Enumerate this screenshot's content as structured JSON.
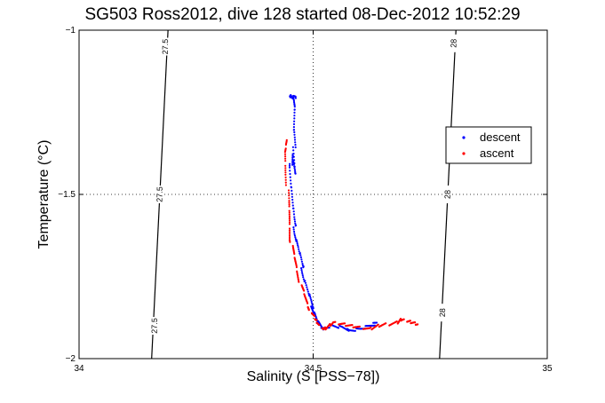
{
  "chart_data": {
    "type": "scatter",
    "title": "SG503 Ross2012, dive 128 started 08-Dec-2012 10:52:29",
    "xlabel": "Salinity (S [PSS−78])",
    "ylabel": "Temperature (°C)",
    "xlim": [
      34,
      35
    ],
    "ylim": [
      -2,
      -1
    ],
    "xticks": [
      34,
      34.5,
      35
    ],
    "yticks": [
      -2,
      -1.5,
      -1
    ],
    "xtick_labels": [
      "34",
      "34.5",
      "35"
    ],
    "ytick_labels": [
      "−2",
      "−1.5",
      "−1"
    ],
    "grid": "dotted at interior ticks",
    "legend": {
      "position": "right",
      "entries": [
        "descent",
        "ascent"
      ]
    },
    "colors": {
      "descent": "#0000ff",
      "ascent": "#ff0000",
      "contour": "#000000"
    },
    "contours": [
      {
        "label": "27.5",
        "points": [
          [
            34.19,
            -1
          ],
          [
            34.155,
            -2
          ]
        ],
        "label_positions": [
          [
            34.184,
            -1.05
          ],
          [
            34.172,
            -1.5
          ],
          [
            34.161,
            -1.9
          ]
        ]
      },
      {
        "label": "28",
        "points": [
          [
            34.805,
            -1
          ],
          [
            34.77,
            -2
          ]
        ],
        "label_positions": [
          [
            34.8,
            -1.04
          ],
          [
            34.787,
            -1.5
          ],
          [
            34.776,
            -1.86
          ]
        ]
      }
    ],
    "series": [
      {
        "name": "descent",
        "path": [
          [
            34.452,
            -1.2
          ],
          [
            34.455,
            -1.205
          ],
          [
            34.46,
            -1.2
          ],
          [
            34.462,
            -1.23
          ],
          [
            34.458,
            -1.3
          ],
          [
            34.46,
            -1.36
          ],
          [
            34.463,
            -1.44
          ],
          [
            34.455,
            -1.38
          ],
          [
            34.452,
            -1.42
          ],
          [
            34.455,
            -1.5
          ],
          [
            34.458,
            -1.57
          ],
          [
            34.462,
            -1.62
          ],
          [
            34.468,
            -1.66
          ],
          [
            34.475,
            -1.71
          ],
          [
            34.48,
            -1.75
          ],
          [
            34.49,
            -1.8
          ],
          [
            34.497,
            -1.84
          ],
          [
            34.503,
            -1.86
          ],
          [
            34.51,
            -1.89
          ],
          [
            34.52,
            -1.91
          ],
          [
            34.54,
            -1.9
          ],
          [
            34.56,
            -1.905
          ],
          [
            34.58,
            -1.915
          ],
          [
            34.6,
            -1.91
          ],
          [
            34.62,
            -1.9
          ],
          [
            34.64,
            -1.89
          ]
        ]
      },
      {
        "name": "ascent",
        "path": [
          [
            34.725,
            -1.895
          ],
          [
            34.71,
            -1.89
          ],
          [
            34.7,
            -1.885
          ],
          [
            34.69,
            -1.88
          ],
          [
            34.68,
            -1.89
          ],
          [
            34.66,
            -1.895
          ],
          [
            34.64,
            -1.9
          ],
          [
            34.62,
            -1.91
          ],
          [
            34.6,
            -1.905
          ],
          [
            34.58,
            -1.9
          ],
          [
            34.56,
            -1.895
          ],
          [
            34.545,
            -1.89
          ],
          [
            34.53,
            -1.905
          ],
          [
            34.52,
            -1.91
          ],
          [
            34.51,
            -1.89
          ],
          [
            34.505,
            -1.88
          ],
          [
            34.495,
            -1.86
          ],
          [
            34.49,
            -1.84
          ],
          [
            34.48,
            -1.8
          ],
          [
            34.472,
            -1.77
          ],
          [
            34.465,
            -1.72
          ],
          [
            34.458,
            -1.68
          ],
          [
            34.452,
            -1.64
          ],
          [
            34.45,
            -1.58
          ],
          [
            34.447,
            -1.52
          ],
          [
            34.443,
            -1.44
          ],
          [
            34.44,
            -1.37
          ],
          [
            34.442,
            -1.33
          ]
        ]
      }
    ]
  }
}
